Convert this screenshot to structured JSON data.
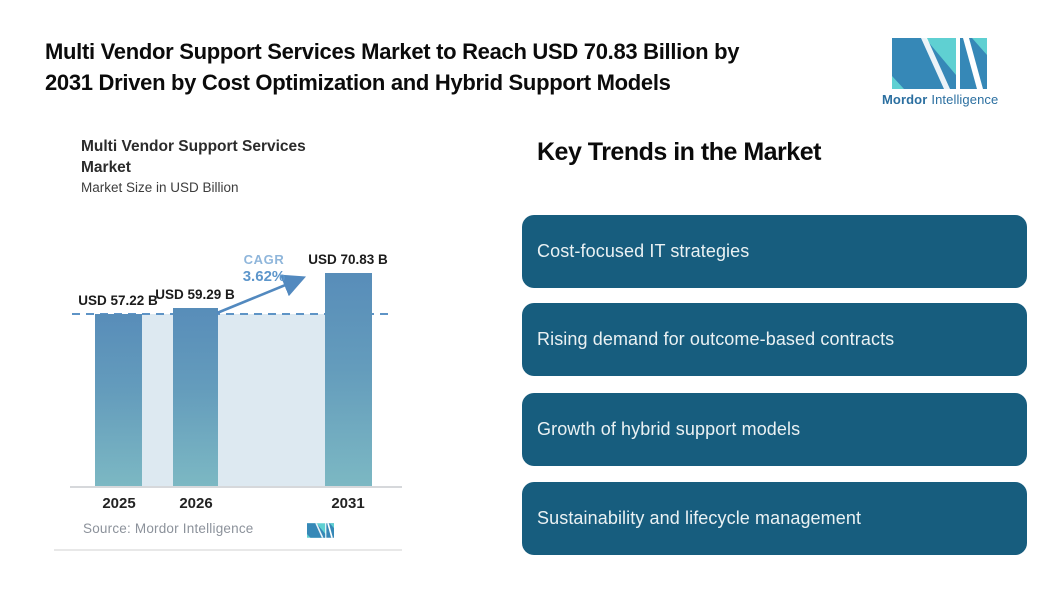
{
  "header": {
    "title_line1": "Multi Vendor Support Services Market to Reach USD 70.83 Billion by",
    "title_line2": "2031 Driven by Cost Optimization and Hybrid Support Models"
  },
  "brand": {
    "word1": "Mordor",
    "word2": "Intelligence",
    "logo_blue": "#3688b7",
    "logo_teal": "#5fd0d2",
    "wordmark_color": "#2b6fa0"
  },
  "chart": {
    "title_line1": "Multi Vendor Support Services",
    "title_line2": "Market",
    "subtitle": "Market Size in USD Billion",
    "cagr_label": "CAGR",
    "cagr_value": "3.62%",
    "source": "Source: Mordor Intelligence"
  },
  "chart_data": {
    "type": "bar",
    "title": "Multi Vendor Support Services Market",
    "subtitle": "Market Size in USD Billion",
    "categories": [
      "2025",
      "2026",
      "2031"
    ],
    "values": [
      57.22,
      59.29,
      70.83
    ],
    "bar_labels": [
      "USD 57.22 B",
      "USD 59.29 B",
      "USD 70.83 B"
    ],
    "unit": "USD Billion",
    "ylim": [
      0,
      70.83
    ],
    "grid": false,
    "legend": false,
    "annotation": {
      "label": "CAGR",
      "value": "3.62%"
    },
    "reference_line_at_value": 57.22,
    "bar_color_top": "#588db9",
    "bar_color_bottom": "#7cb8c3",
    "backdrop_color": "#dde9f1",
    "source": "Source: Mordor Intelligence"
  },
  "trends": {
    "heading": "Key Trends in the Market",
    "card_color": "#175d7e",
    "items": [
      {
        "label": "Cost-focused IT strategies"
      },
      {
        "label": "Rising demand for outcome-based contracts"
      },
      {
        "label": "Growth of hybrid support models"
      },
      {
        "label": "Sustainability and lifecycle management"
      }
    ]
  }
}
